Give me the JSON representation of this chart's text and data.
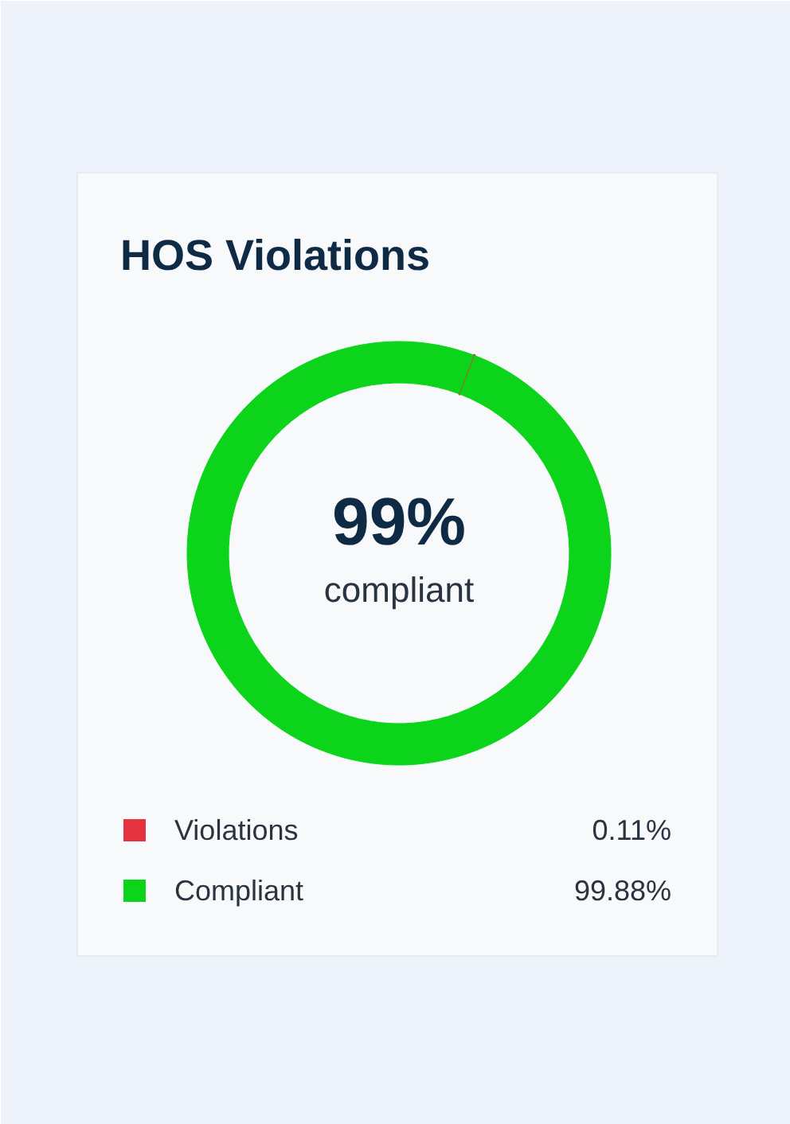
{
  "chart_data": {
    "type": "donut",
    "title": "HOS Violations",
    "categories": [
      "Violations",
      "Compliant"
    ],
    "values": [
      0.11,
      99.88
    ],
    "colors": [
      "#e5323f",
      "#0cd41a"
    ],
    "value_labels": [
      "0.11%",
      "99.88%"
    ],
    "annotations": [
      "99%",
      "compliant"
    ],
    "legend": "bottom"
  }
}
